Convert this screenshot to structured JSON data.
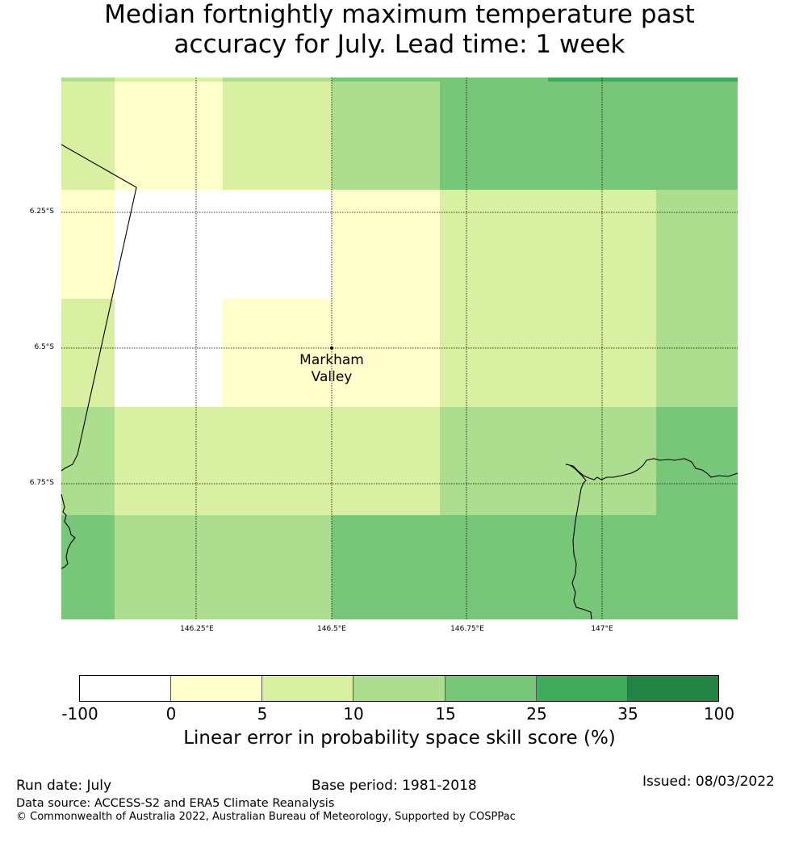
{
  "title": {
    "line1": "Median fortnightly maximum temperature past",
    "line2": "accuracy for July. Lead time: 1 week"
  },
  "map": {
    "lat_labels": [
      "6.25°S",
      "6.5°S",
      "6.75°S"
    ],
    "lon_labels": [
      "146.25°E",
      "146.5°E",
      "146.75°E",
      "147°E"
    ],
    "site": {
      "name_line1": "Markham",
      "name_line2": "Valley"
    }
  },
  "colors": {
    "white": "#ffffff",
    "c0_5": "#ffffcc",
    "c5_10": "#d9f0a3",
    "c10_15": "#addd8e",
    "c15_25": "#78c679",
    "c25_35": "#41ab5d",
    "c35_100": "#238443"
  },
  "colorbar": {
    "ticks": [
      "-100",
      "0",
      "5",
      "10",
      "15",
      "25",
      "35",
      "100"
    ],
    "label": "Linear error in probability space skill score (%)"
  },
  "footer": {
    "run_date": "Run date: July",
    "base_period": "Base period: 1981-2018",
    "issued": "Issued: 08/03/2022",
    "data_source": "Data source: ACCESS-S2 and ERA5 Climate Reanalysis",
    "copyright": "© Commonwealth of Australia 2022, Australian Bureau of Meteorology, Supported by COSPPac"
  }
}
